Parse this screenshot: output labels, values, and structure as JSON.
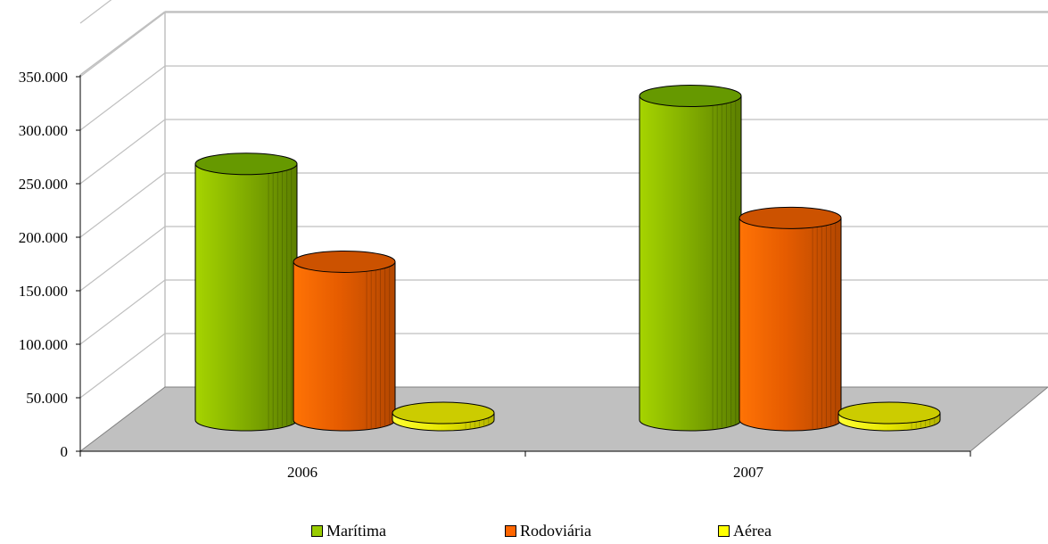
{
  "chart_data": {
    "type": "bar",
    "style": "3d-cylinder",
    "categories": [
      "2006",
      "2007"
    ],
    "series": [
      {
        "name": "Marítima",
        "values": [
          275000,
          348000
        ],
        "color": "#99cc00"
      },
      {
        "name": "Rodoviária",
        "values": [
          170000,
          217000
        ],
        "color": "#ff6600"
      },
      {
        "name": "Aérea",
        "values": [
          3000,
          3000
        ],
        "color": "#ffff00"
      }
    ],
    "yticks": [
      "0",
      "50.000",
      "100.000",
      "150.000",
      "200.000",
      "250.000",
      "300.000",
      "350.000"
    ],
    "ylim": [
      0,
      350000
    ],
    "grid": true,
    "legend_position": "bottom"
  }
}
